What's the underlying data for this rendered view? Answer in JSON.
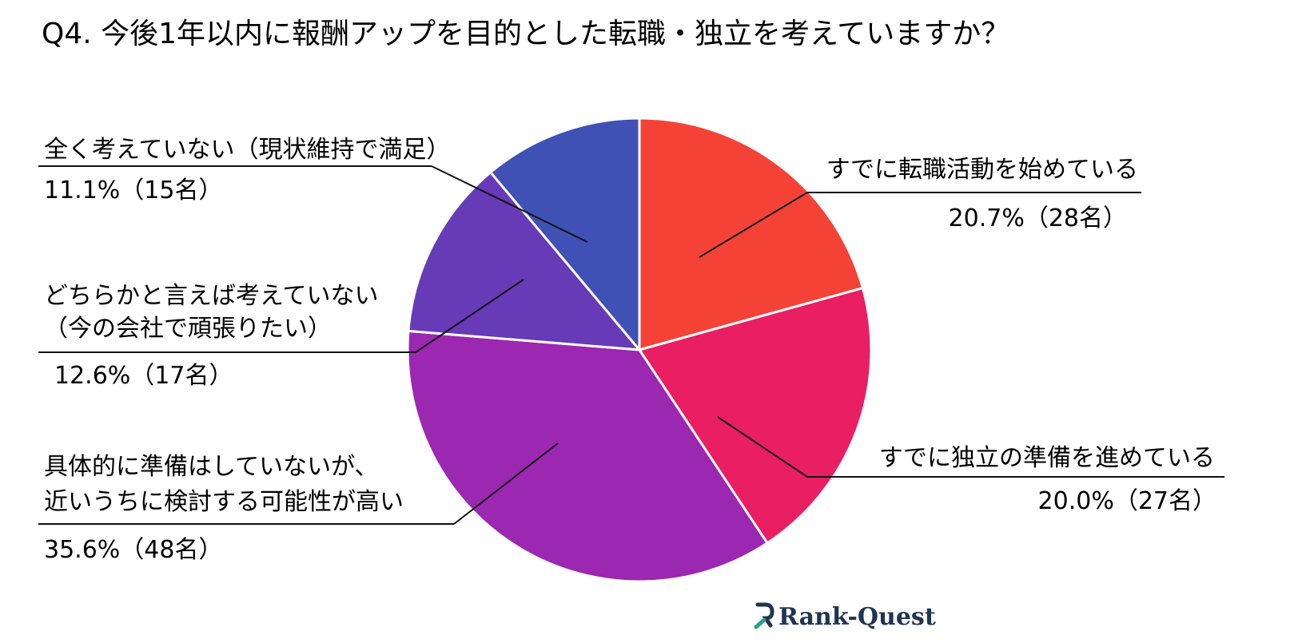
{
  "chart_data": {
    "type": "pie",
    "title": "Q4. 今後1年以内に報酬アップを目的とした転職・独立を考えていますか？",
    "slices": [
      {
        "label_lines": [
          "すでに転職活動を始めている"
        ],
        "value_text": "20.7%（28名）",
        "percent": 20.7,
        "count": 28,
        "color": "#F44336"
      },
      {
        "label_lines": [
          "すでに独立の準備を進めている"
        ],
        "value_text": "20.0%（27名）",
        "percent": 20.0,
        "count": 27,
        "color": "#E91E63"
      },
      {
        "label_lines": [
          "具体的に準備はしていないが、",
          "近いうちに検討する可能性が高い"
        ],
        "value_text": "35.6%（48名）",
        "percent": 35.6,
        "count": 48,
        "color": "#9C27B0"
      },
      {
        "label_lines": [
          "どちらかと言えば考えていない",
          "（今の会社で頑張りたい）"
        ],
        "value_text": "12.6%（17名）",
        "percent": 12.6,
        "count": 17,
        "color": "#673AB7"
      },
      {
        "label_lines": [
          "全く考えていない（現状維持で満足）"
        ],
        "value_text": "11.1%（15名）",
        "percent": 11.1,
        "count": 15,
        "color": "#3F51B5"
      }
    ]
  },
  "brand": {
    "name": "Rank-Quest",
    "color": "#1f3550",
    "accent": "#2a9d8f",
    "icon": "rank-quest-logo-icon"
  }
}
